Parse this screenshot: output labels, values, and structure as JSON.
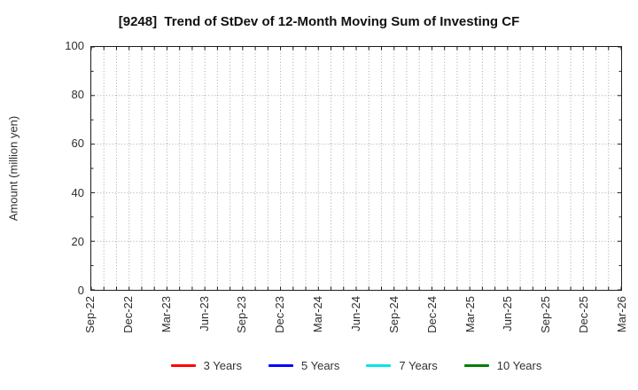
{
  "chart_data": {
    "type": "line",
    "title": "[9248]  Trend of StDev of 12-Month Moving Sum of Investing CF",
    "ylabel": "Amount (million yen)",
    "xlabel": "",
    "ylim": [
      0,
      100
    ],
    "y_ticks": [
      0,
      20,
      40,
      60,
      80,
      100
    ],
    "y_minor_tick_step": 10,
    "x_tick_labels": [
      "Sep-22",
      "Dec-22",
      "Mar-23",
      "Jun-23",
      "Sep-23",
      "Dec-23",
      "Mar-24",
      "Jun-24",
      "Sep-24",
      "Dec-24",
      "Mar-25",
      "Jun-25",
      "Sep-25",
      "Dec-25",
      "Mar-26"
    ],
    "x_months_per_label": 3,
    "x_total_months": 42,
    "grid": "dotted",
    "legend_position": "bottom",
    "series": [
      {
        "name": "3 Years",
        "color": "#ff0000",
        "values": []
      },
      {
        "name": "5 Years",
        "color": "#0000ff",
        "values": []
      },
      {
        "name": "7 Years",
        "color": "#00e6e6",
        "values": []
      },
      {
        "name": "10 Years",
        "color": "#007f00",
        "values": []
      }
    ],
    "colors": {
      "frame": "#1c1c1c",
      "grid": "#a6a6a6",
      "text": "#2e2e2e",
      "title": "#111111",
      "background": "#ffffff"
    }
  }
}
